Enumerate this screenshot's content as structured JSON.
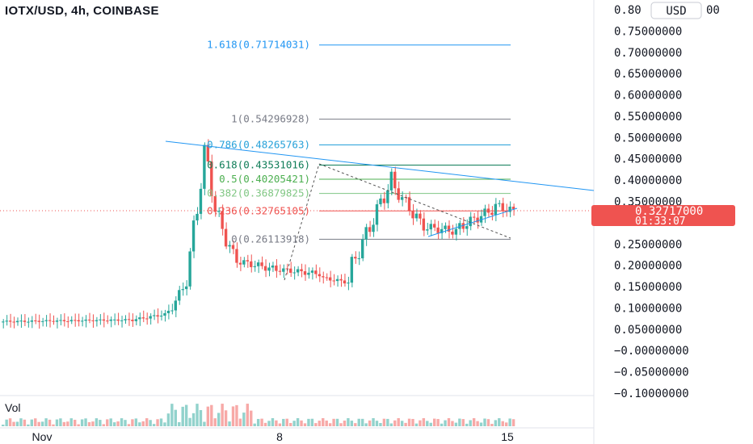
{
  "header": {
    "title": "IOTX/USD, 4h, COINBASE"
  },
  "currency_button": {
    "label": "USD"
  },
  "price_axis": {
    "labels": [
      "0.80",
      "0.75000000",
      "0.70000000",
      "0.65000000",
      "0.60000000",
      "0.55000000",
      "0.50000000",
      "0.45000000",
      "0.40000000",
      "0.35000000",
      "0.25000000",
      "0.20000000",
      "0.15000000",
      "0.10000000",
      "0.05000000",
      "−0.00000000",
      "−0.05000000",
      "−0.10000000"
    ],
    "label_suffix": "00",
    "values": [
      0.8,
      0.75,
      0.7,
      0.65,
      0.6,
      0.55,
      0.5,
      0.45,
      0.4,
      0.35,
      0.25,
      0.2,
      0.15,
      0.1,
      0.05,
      0.0,
      -0.05,
      -0.1
    ]
  },
  "time_axis": {
    "labels": [
      "Nov",
      "8",
      "15"
    ]
  },
  "last_price": {
    "price": "0.32717000",
    "countdown": "01:33:07",
    "color": "#ef5350"
  },
  "volume": {
    "label": "Vol"
  },
  "fib_levels": [
    {
      "ratio": "1.618",
      "price": "0.71714031",
      "text": "1.618(0.71714031)",
      "color": "#2196f3"
    },
    {
      "ratio": "1",
      "price": "0.54296928",
      "text": "1(0.54296928)",
      "color": "#787b86"
    },
    {
      "ratio": "0.786",
      "price": "0.48265763",
      "text": "0.786(0.48265763)",
      "color": "#26a1d9"
    },
    {
      "ratio": "0.618",
      "price": "0.43531016",
      "text": "0.618(0.43531016)",
      "color": "#0e7c57"
    },
    {
      "ratio": "0.5",
      "price": "0.40205421",
      "text": "0.5(0.40205421)",
      "color": "#4caf50"
    },
    {
      "ratio": "0.382",
      "price": "0.36879825",
      "text": "0.382(0.36879825)",
      "color": "#81c784"
    },
    {
      "ratio": "0.236",
      "price": "0.32765105",
      "text": "0.236(0.32765105)",
      "color": "#ef5350"
    },
    {
      "ratio": "0",
      "price": "0.26113918",
      "text": "0(0.26113918)",
      "color": "#787b86"
    }
  ],
  "colors": {
    "up": "#26a69a",
    "down": "#ef5350",
    "trendline": "#2196f3",
    "grid": "#e0e3eb"
  },
  "icons": [
    "currency-dropdown"
  ]
}
